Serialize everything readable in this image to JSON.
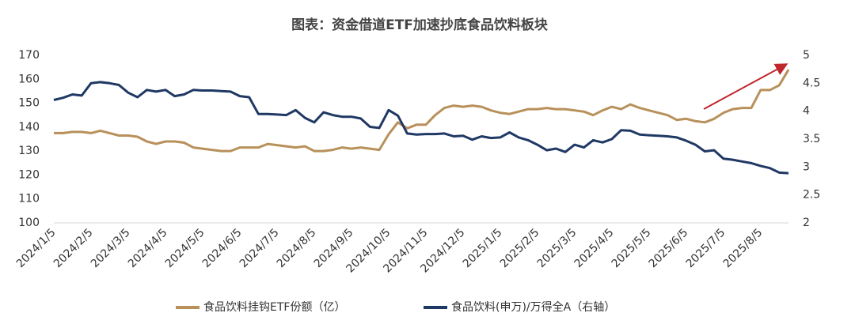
{
  "chart_data": {
    "type": "line",
    "title": "图表：资金借道ETF加速抄底食品饮料板块",
    "categories": [
      "2024/1/5",
      null,
      null,
      null,
      "2024/2/5",
      null,
      null,
      null,
      "2024/3/5",
      null,
      null,
      null,
      "2024/4/5",
      null,
      null,
      null,
      "2024/5/5",
      null,
      null,
      null,
      "2024/6/5",
      null,
      null,
      null,
      "2024/7/5",
      null,
      null,
      null,
      "2024/8/5",
      null,
      null,
      null,
      "2024/9/5",
      null,
      null,
      null,
      "2024/10/5",
      null,
      null,
      null,
      "2024/11/5",
      null,
      null,
      null,
      "2024/12/5",
      null,
      null,
      null,
      "2025/1/5",
      null,
      null,
      null,
      "2025/2/5",
      null,
      null,
      null,
      "2025/3/5",
      null,
      null,
      null,
      "2025/4/5",
      null,
      null,
      null,
      "2025/5/5",
      null,
      null,
      null,
      "2025/6/5",
      null,
      null,
      null,
      "2025/7/5",
      null,
      null,
      null,
      "2025/8/5",
      null,
      null,
      null
    ],
    "series": [
      {
        "name": "食品饮料挂钩ETF份额（亿）",
        "color": "#b8905a",
        "axis": "y",
        "values": [
          137.5,
          137.5,
          138,
          138,
          137.5,
          138.5,
          137.5,
          136.5,
          136.5,
          136,
          134,
          133,
          134,
          134,
          133.5,
          131.5,
          131,
          130.5,
          130,
          130,
          131.5,
          131.5,
          131.5,
          133,
          132.5,
          132,
          131.5,
          132,
          130,
          130,
          130.5,
          131.5,
          131,
          131.5,
          131,
          130.5,
          137,
          142,
          139.5,
          141,
          141,
          145,
          148,
          149,
          148.5,
          149,
          148.5,
          147,
          146,
          145.5,
          146.5,
          147.5,
          147.5,
          148,
          147.5,
          147.5,
          147,
          146.5,
          145,
          147,
          148.5,
          147.5,
          149.5,
          148,
          147,
          146,
          145,
          143,
          143.5,
          142.5,
          142,
          143.5,
          146,
          147.5,
          148,
          148,
          155.5,
          155.5,
          157.5,
          164
        ]
      },
      {
        "name": "食品饮料(申万)/万得全A（右轴）",
        "color": "#1f3864",
        "axis": "y2",
        "values": [
          4.2,
          4.24,
          4.3,
          4.28,
          4.5,
          4.52,
          4.5,
          4.47,
          4.33,
          4.25,
          4.38,
          4.35,
          4.38,
          4.27,
          4.3,
          4.38,
          4.37,
          4.37,
          4.36,
          4.35,
          4.27,
          4.25,
          3.95,
          3.95,
          3.94,
          3.93,
          4.02,
          3.88,
          3.8,
          3.98,
          3.93,
          3.9,
          3.9,
          3.87,
          3.72,
          3.7,
          4.02,
          3.92,
          3.6,
          3.58,
          3.59,
          3.59,
          3.6,
          3.55,
          3.56,
          3.49,
          3.55,
          3.52,
          3.53,
          3.62,
          3.53,
          3.48,
          3.4,
          3.3,
          3.33,
          3.27,
          3.4,
          3.35,
          3.48,
          3.44,
          3.5,
          3.66,
          3.65,
          3.58,
          3.57,
          3.56,
          3.55,
          3.53,
          3.47,
          3.4,
          3.28,
          3.3,
          3.15,
          3.13,
          3.1,
          3.07,
          3.02,
          2.98,
          2.9,
          2.89
        ]
      }
    ],
    "ylim": [
      100,
      170
    ],
    "yticks": [
      100,
      110,
      120,
      130,
      140,
      150,
      160,
      170
    ],
    "y2lim": [
      2,
      5
    ],
    "y2ticks": [
      2,
      2.5,
      3,
      3.5,
      4,
      4.5,
      5
    ],
    "grid": false
  }
}
